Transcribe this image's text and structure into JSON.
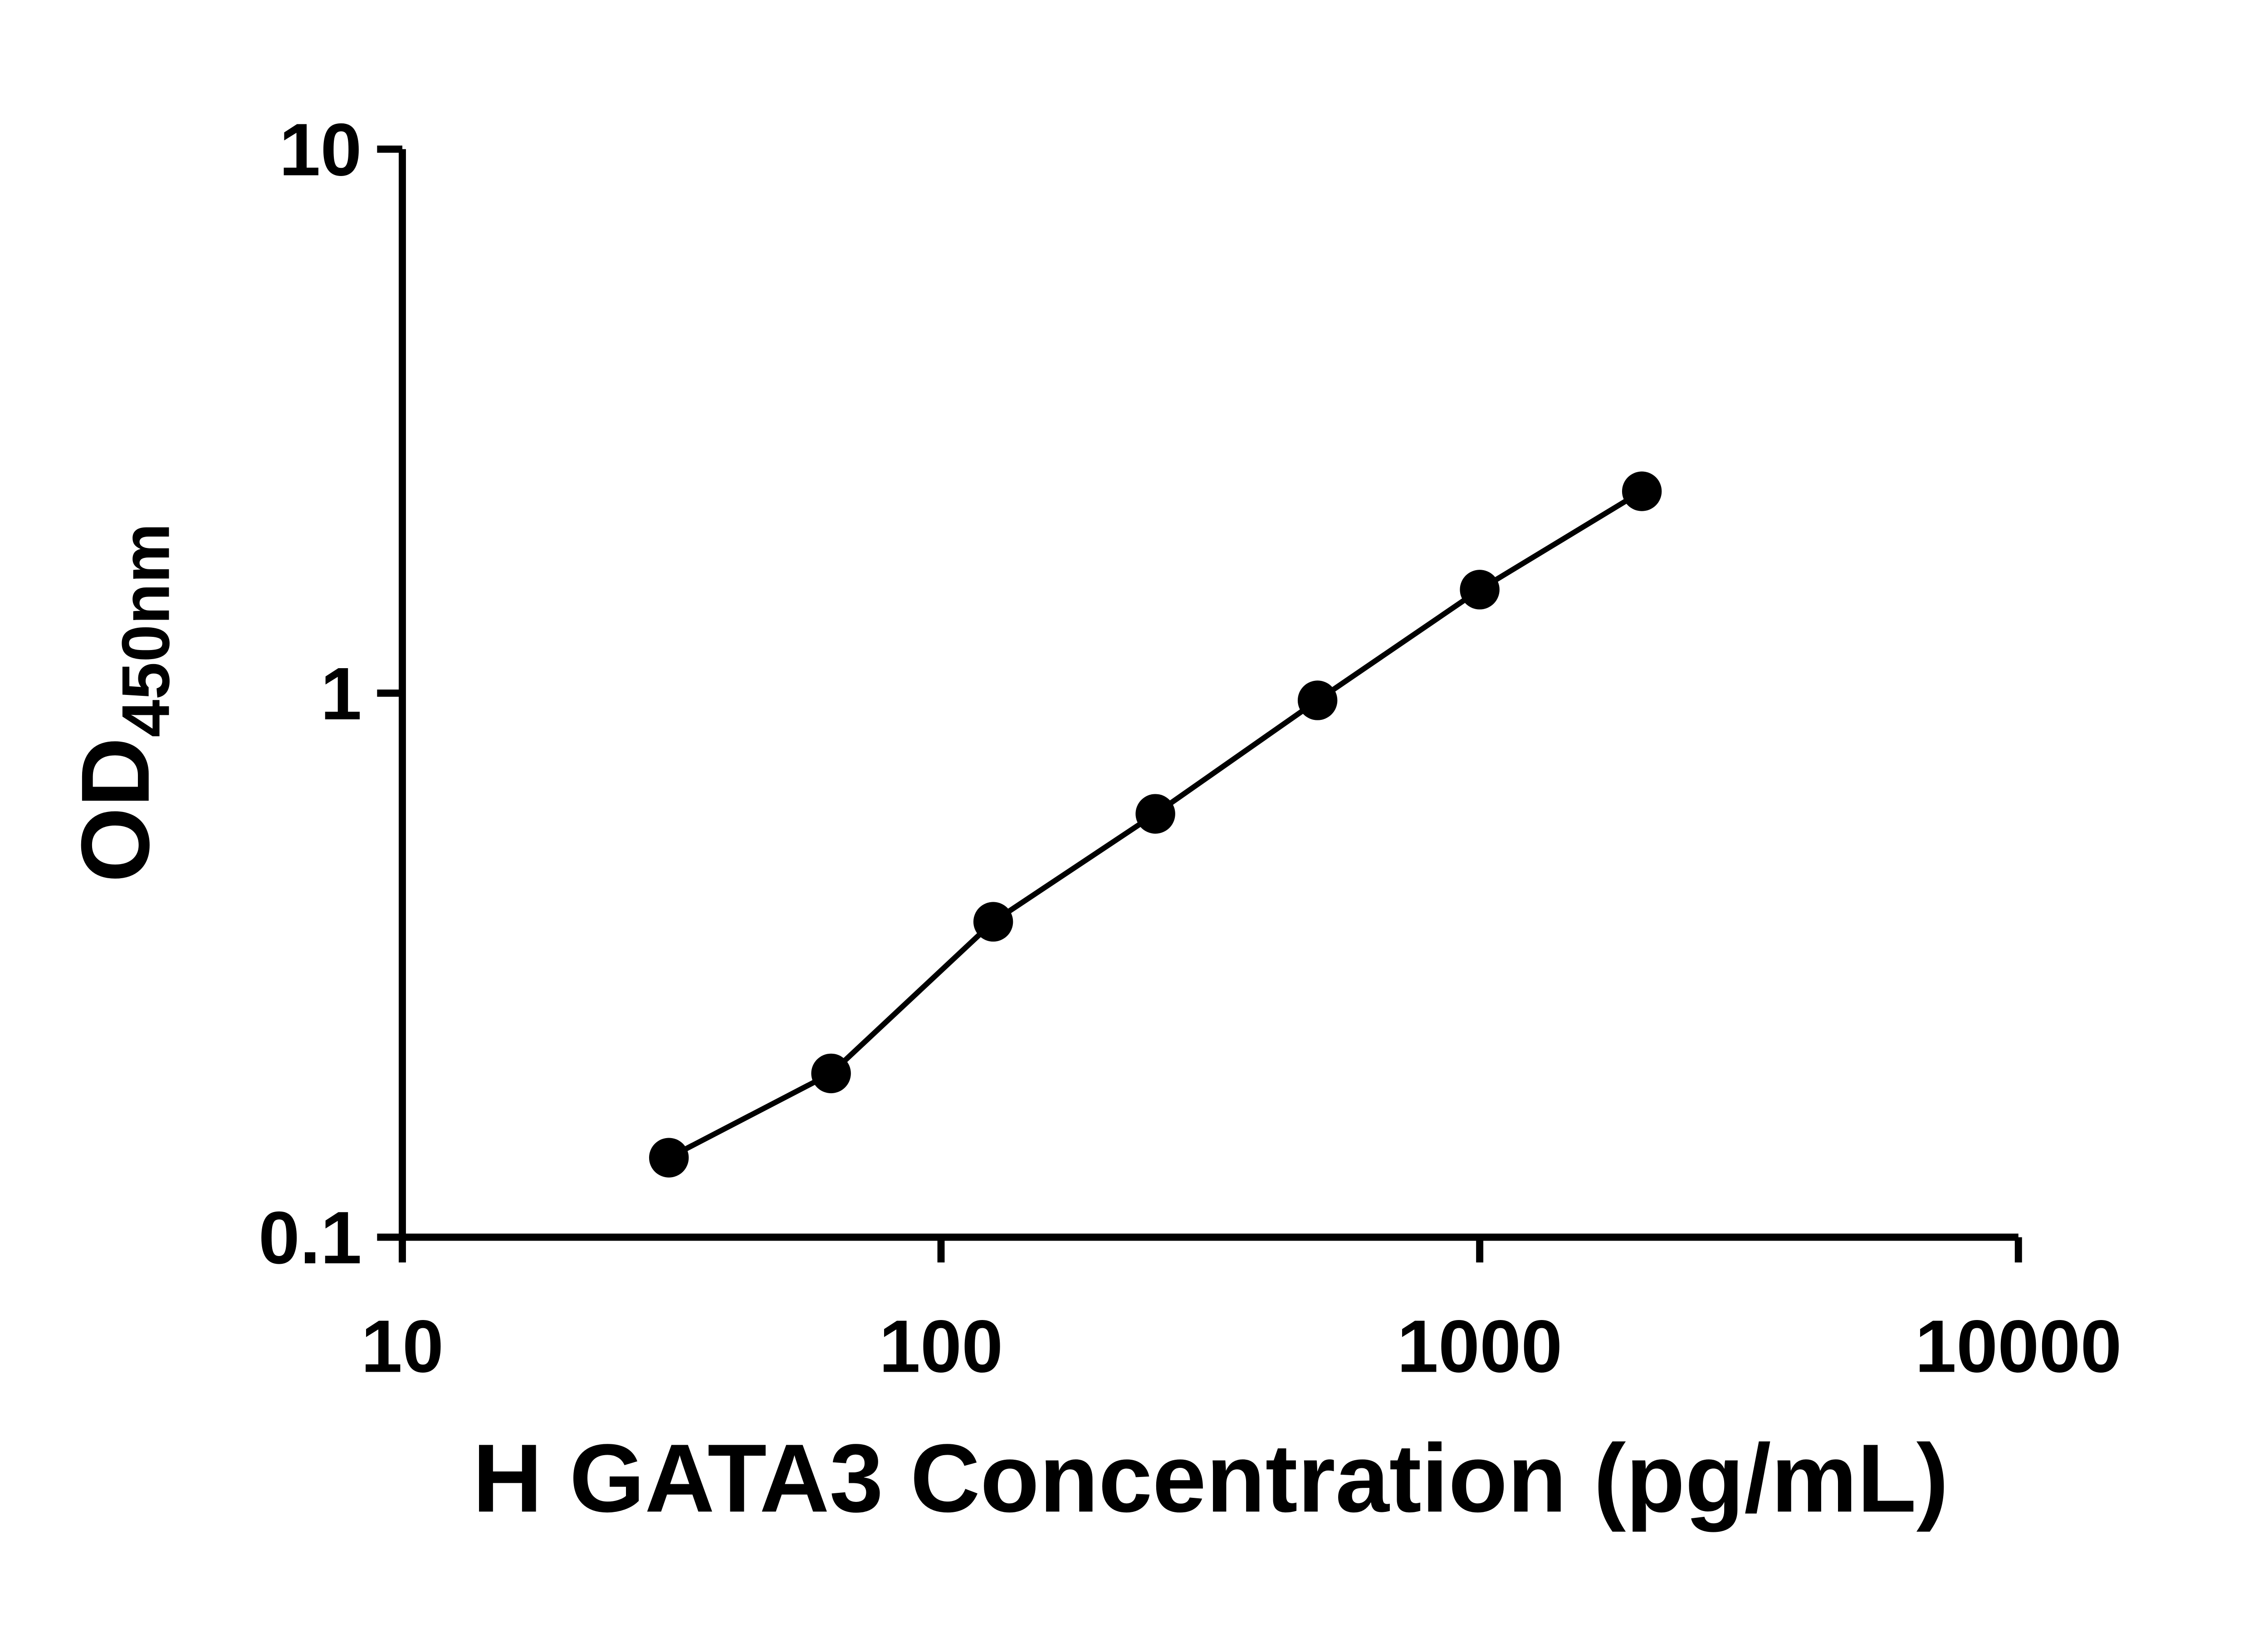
{
  "page": {
    "background_color": "#ffffff"
  },
  "chart_data": {
    "type": "scatter",
    "title": "",
    "xlabel": "H GATA3 Concentration (pg/mL)",
    "ylabel_main": "OD",
    "ylabel_sub": "450nm",
    "x_scale": "log10",
    "y_scale": "log10",
    "xlim": [
      10,
      10000
    ],
    "ylim": [
      0.1,
      10
    ],
    "grid": false,
    "legend": null,
    "axis_color": "#000000",
    "text_color": "#000000",
    "x_ticks": [
      {
        "value": 10,
        "label": "10"
      },
      {
        "value": 100,
        "label": "100"
      },
      {
        "value": 1000,
        "label": "1000"
      },
      {
        "value": 10000,
        "label": "10000"
      }
    ],
    "y_ticks": [
      {
        "value": 0.1,
        "label": "0.1"
      },
      {
        "value": 1,
        "label": "1"
      },
      {
        "value": 10,
        "label": "10"
      }
    ],
    "series": [
      {
        "x": [
          31.25,
          62.5,
          125,
          250,
          500,
          1000,
          2000
        ],
        "y": [
          0.14,
          0.2,
          0.38,
          0.6,
          0.97,
          1.55,
          2.35
        ],
        "marker": "circle",
        "marker_radius": 44,
        "marker_color": "#000000",
        "line": true,
        "line_color": "#000000",
        "line_width": 12
      }
    ]
  }
}
